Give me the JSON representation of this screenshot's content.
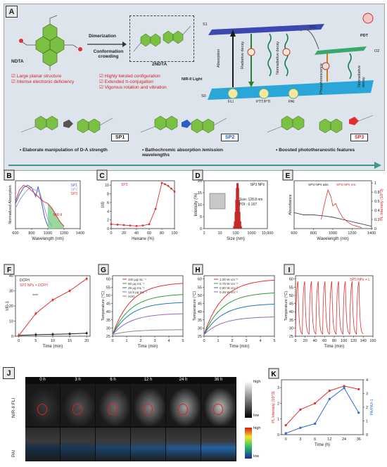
{
  "panel_a": {
    "tag": "A",
    "ndta": "NDTA",
    "twondta": "2NDTA",
    "dimerization": "Dimerization",
    "conformation": "Conformation crowding",
    "bullets_left": [
      "Large planar structure",
      "Intense electronic deficiency"
    ],
    "bullets_mid": [
      "Highly twisted configuration",
      "Extended π-conjugation",
      "Vigorous rotation and vibration"
    ],
    "jablonski": {
      "s1": "S1",
      "s0": "S0",
      "absorption": "Absorption",
      "radiative": "Radiative decay",
      "nonradiative": "Nonradiative decay",
      "isc": "ISC",
      "phos": "Phosphorescence",
      "nonrad2": "Nonradiative decay",
      "pdt": "PDT",
      "o2": "O2",
      "nir": "NIR-II Light",
      "fli": "FLI",
      "ptt": "PTT/PTI",
      "pai": "PAI"
    },
    "sp_labels": [
      "SP1",
      "SP2",
      "SP3"
    ],
    "bottom_bullets": [
      "Elaborate manipulation of D-A strength",
      "Bathochromic absorption /emission wavelengths",
      "Boosted phototheranostic features"
    ]
  },
  "chart_data": [
    {
      "panel": "B",
      "type": "line",
      "xlabel": "Wavelength (nm)",
      "ylabel": "Normalized Absorption",
      "xlim": [
        600,
        1400
      ],
      "xticks": [
        600,
        800,
        1000,
        1200,
        1400
      ],
      "annotation": "NIR-II",
      "series": [
        {
          "name": "SP1",
          "color": "#3a5fcd",
          "x": [
            600,
            650,
            700,
            750,
            800,
            850,
            880,
            920,
            960,
            1000
          ],
          "y": [
            0.55,
            0.75,
            0.9,
            0.95,
            0.9,
            0.7,
            0.92,
            0.6,
            0.25,
            0.05
          ]
        },
        {
          "name": "SP2",
          "color": "#9aa0c8",
          "x": [
            600,
            660,
            720,
            780,
            840,
            900,
            950,
            1000,
            1050
          ],
          "y": [
            0.45,
            0.65,
            0.8,
            0.9,
            0.85,
            0.8,
            0.5,
            0.2,
            0.05
          ]
        },
        {
          "name": "SP3",
          "color": "#e03030",
          "x": [
            600,
            650,
            700,
            760,
            820,
            880,
            940,
            1000,
            1050,
            1100,
            1150,
            1200
          ],
          "y": [
            0.6,
            0.85,
            0.95,
            0.9,
            0.8,
            0.7,
            0.6,
            0.55,
            0.45,
            0.3,
            0.15,
            0.05
          ]
        }
      ]
    },
    {
      "panel": "C",
      "type": "line",
      "xlabel": "Hexane (%)",
      "ylabel": "I/I0",
      "legend": "SP3",
      "xlim": [
        0,
        100
      ],
      "xticks": [
        0,
        20,
        40,
        60,
        80,
        100
      ],
      "ylim": [
        0,
        10
      ],
      "yticks": [
        0,
        2,
        4,
        6,
        8,
        10
      ],
      "series": [
        {
          "name": "SP3",
          "x": [
            0,
            10,
            20,
            30,
            40,
            50,
            60,
            70,
            80,
            85,
            90,
            95,
            100
          ],
          "y": [
            1.0,
            0.9,
            0.8,
            0.7,
            0.6,
            0.7,
            1.0,
            4.5,
            10.5,
            10.2,
            9.8,
            9.2,
            8.5
          ]
        }
      ]
    },
    {
      "panel": "D",
      "type": "bar",
      "xlabel": "Size (nm)",
      "ylabel": "Intensity (%)",
      "legend": "SP3 NPs",
      "xticks": [
        "1",
        "10",
        "100",
        "1000",
        "10,000"
      ],
      "yticks": [
        0,
        5,
        10,
        15,
        20
      ],
      "ylim": [
        0,
        20
      ],
      "annotation": "Size: 128.8 nm\nPDI : 0.167",
      "x": [
        80,
        90,
        100,
        110,
        120,
        130,
        140,
        155,
        170,
        190,
        210
      ],
      "values": [
        1,
        3,
        7,
        12,
        17,
        19,
        17,
        12,
        7,
        3,
        1
      ]
    },
    {
      "panel": "E",
      "type": "line",
      "xlabel": "Wavelength (nm)",
      "ylabel": "Absorbance",
      "y2label": "PL Intensity (10^3)",
      "xlim": [
        600,
        1400
      ],
      "xticks": [
        600,
        800,
        1000,
        1200,
        1400
      ],
      "y2ticks": [
        0,
        0.2,
        0.4,
        0.6,
        0.8,
        1.0
      ],
      "series": [
        {
          "name": "SP3 NPs abs.",
          "color": "#333333",
          "x": [
            600,
            700,
            800,
            900,
            1000,
            1100,
            1200,
            1300,
            1400
          ],
          "y": [
            0.35,
            0.3,
            0.3,
            0.28,
            0.25,
            0.2,
            0.15,
            0.1,
            0.05
          ]
        },
        {
          "name": "SP3 NPs em.",
          "color": "#e03030",
          "x": [
            880,
            920,
            950,
            980,
            1000,
            1030,
            1060,
            1100,
            1150,
            1200,
            1300
          ],
          "y": [
            0.2,
            0.6,
            0.85,
            0.7,
            0.5,
            0.55,
            0.4,
            0.25,
            0.15,
            0.08,
            0.02
          ]
        }
      ]
    },
    {
      "panel": "F",
      "type": "line",
      "xlabel": "Time (min)",
      "ylabel": "I/I0-1",
      "xticks": [
        0,
        5,
        10,
        15,
        20
      ],
      "yticks": [
        0,
        10,
        20,
        30,
        40
      ],
      "ylim": [
        0,
        40
      ],
      "annotation": "****",
      "series": [
        {
          "name": "DCFH",
          "color": "#222222",
          "x": [
            0,
            5,
            10,
            15,
            20
          ],
          "y": [
            0.5,
            1.0,
            1.2,
            1.5,
            2.0
          ]
        },
        {
          "name": "SP3 NPs + DCFH",
          "color": "#e03030",
          "x": [
            0,
            5,
            10,
            15,
            20
          ],
          "y": [
            0.5,
            15,
            24,
            30,
            38
          ]
        }
      ]
    },
    {
      "panel": "G",
      "type": "line",
      "xlabel": "Time (min)",
      "ylabel": "Temperature (°C)",
      "xticks": [
        0,
        1,
        2,
        3,
        4,
        5
      ],
      "yticks": [
        25,
        30,
        35,
        40,
        45,
        50,
        55,
        60
      ],
      "ylim": [
        25,
        62
      ],
      "series": [
        {
          "name": "100 μg mL⁻¹",
          "color": "#e03030",
          "end": 58
        },
        {
          "name": "50 μg mL⁻¹",
          "color": "#2ca02c",
          "end": 51
        },
        {
          "name": "25 μg mL⁻¹",
          "color": "#1f77b4",
          "end": 46
        },
        {
          "name": "12.5 μg mL⁻¹",
          "color": "#9467bd",
          "end": 39
        },
        {
          "name": "H2O",
          "color": "#888888",
          "end": 29
        }
      ]
    },
    {
      "panel": "H",
      "type": "line",
      "xlabel": "Time (min)",
      "ylabel": "Temperature (°C)",
      "xticks": [
        0,
        1,
        2,
        3,
        4,
        5
      ],
      "yticks": [
        25,
        30,
        35,
        40,
        45,
        50,
        55,
        60
      ],
      "ylim": [
        25,
        62
      ],
      "series": [
        {
          "name": "1.00 W cm⁻²",
          "color": "#e03030",
          "end": 60
        },
        {
          "name": "0.75 W cm⁻²",
          "color": "#2ca02c",
          "end": 52
        },
        {
          "name": "0.50 W cm⁻²",
          "color": "#1f77b4",
          "end": 45
        },
        {
          "name": "0.25 W cm⁻²",
          "color": "#9467bd",
          "end": 37
        }
      ]
    },
    {
      "panel": "I",
      "type": "line",
      "xlabel": "Time (min)",
      "ylabel": "Temperature (°C)",
      "legend": "SP3 NPs + L",
      "xticks": [
        0,
        20,
        40,
        60,
        80,
        100,
        120,
        140,
        160
      ],
      "yticks": [
        25,
        30,
        35,
        40,
        45,
        50,
        55,
        60
      ],
      "ylim": [
        25,
        62
      ],
      "cycles": 10
    },
    {
      "panel": "K",
      "type": "line",
      "xlabel": "Time (h)",
      "ylabel": "PL Intensity (10^3)",
      "y2label": "PA/PA0-1",
      "categories": [
        "0",
        "3",
        "6",
        "12",
        "24",
        "36"
      ],
      "yticks": [
        0,
        1,
        2,
        3
      ],
      "y2ticks": [
        0,
        1,
        2,
        3,
        4
      ],
      "series": [
        {
          "name": "PL",
          "color": "#e03030",
          "values": [
            0.6,
            1.6,
            2.0,
            2.8,
            3.1,
            2.9
          ]
        },
        {
          "name": "PA",
          "color": "#2b6ed6",
          "values": [
            0.1,
            0.5,
            0.8,
            2.6,
            3.4,
            1.6
          ]
        }
      ]
    }
  ],
  "panel_j": {
    "tag": "J",
    "times": [
      "0 h",
      "3 h",
      "6 h",
      "12 h",
      "24 h",
      "36 h"
    ],
    "row1": "NIR-II FLI",
    "row2": "PAI",
    "high": "high",
    "low": "low"
  },
  "tags": [
    "B",
    "C",
    "D",
    "E",
    "F",
    "G",
    "H",
    "I",
    "K"
  ]
}
